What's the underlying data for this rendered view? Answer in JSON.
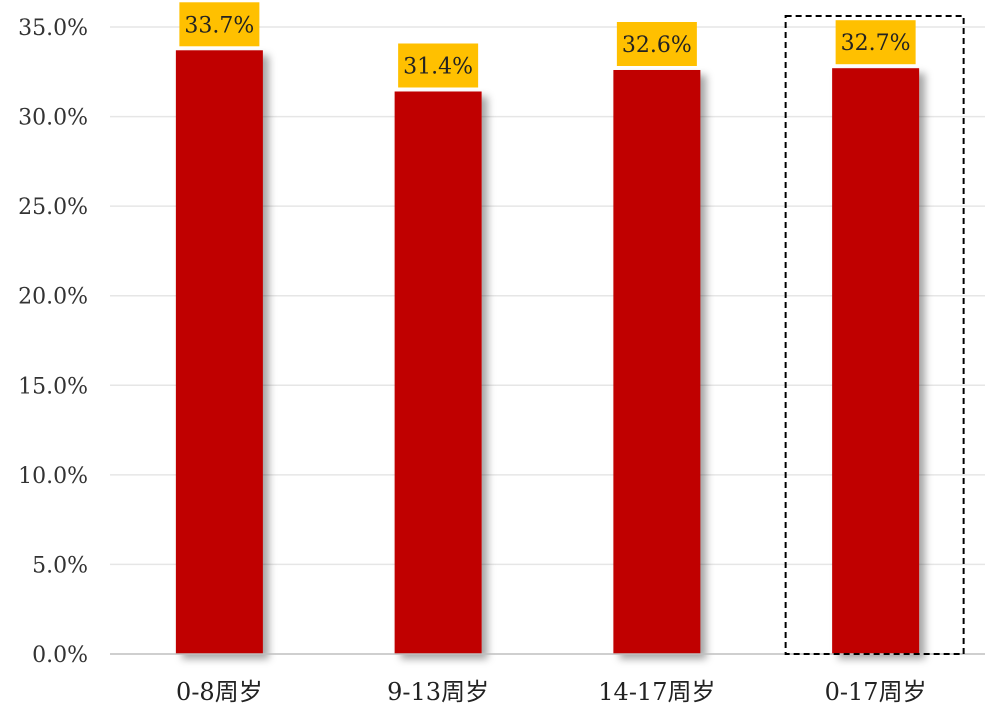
{
  "chart_data": {
    "type": "bar",
    "categories": [
      "0-8周岁",
      "9-13周岁",
      "14-17周岁",
      "0-17周岁"
    ],
    "values": [
      33.7,
      31.4,
      32.6,
      32.7
    ],
    "data_labels": [
      "33.7%",
      "31.4%",
      "32.6%",
      "32.7%"
    ],
    "ylim": [
      0,
      35
    ],
    "y_ticks": [
      0,
      5,
      10,
      15,
      20,
      25,
      30,
      35
    ],
    "y_tick_labels": [
      "0.0%",
      "5.0%",
      "10.0%",
      "15.0%",
      "20.0%",
      "25.0%",
      "30.0%",
      "35.0%"
    ],
    "grid": true,
    "legend": "none",
    "highlighted_category": "0-17周岁",
    "colors": {
      "bar": "#c00000",
      "label_background": "#ffc000",
      "gridline": "#e6e6e6",
      "axis": "#bfbfbf"
    }
  }
}
